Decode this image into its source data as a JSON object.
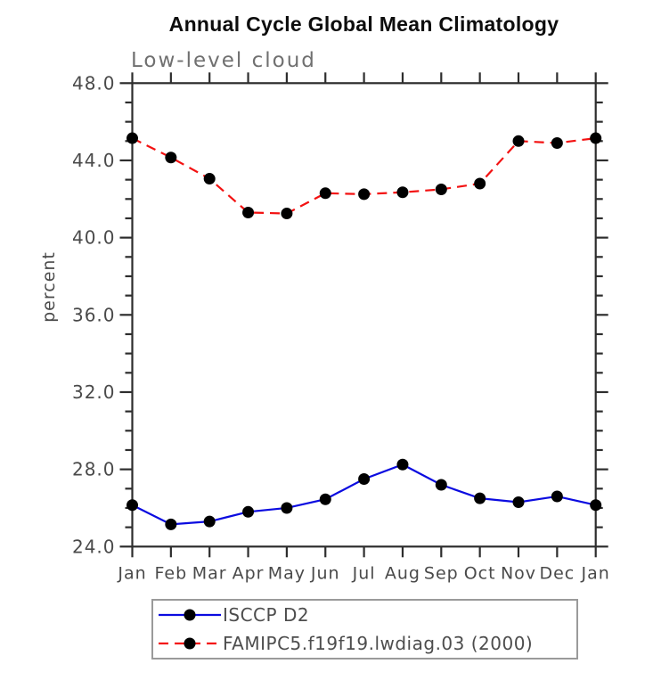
{
  "title": "Annual Cycle Global Mean Climatology",
  "subtitle": "Low-level cloud",
  "ylabel": "percent",
  "colors": {
    "axis": "#2d2d2d",
    "tick_text": "#4a4a4a",
    "subtitle_text": "#707070",
    "legend_border": "#9a9a9a",
    "marker": "#000000",
    "background": "#ffffff"
  },
  "chart_data": {
    "type": "line",
    "title": "Annual Cycle Global Mean Climatology",
    "subtitle": "Low-level cloud",
    "xlabel": "",
    "ylabel": "percent",
    "categories": [
      "Jan",
      "Feb",
      "Mar",
      "Apr",
      "May",
      "Jun",
      "Jul",
      "Aug",
      "Sep",
      "Oct",
      "Nov",
      "Dec",
      "Jan"
    ],
    "ylim": [
      24.0,
      48.0
    ],
    "ymajor_step": 4,
    "yminor_step": 1,
    "ytick_labels": [
      "24.0",
      "28.0",
      "32.0",
      "36.0",
      "40.0",
      "44.0",
      "48.0"
    ],
    "grid": false,
    "legend_position": "bottom",
    "series": [
      {
        "name": "ISCCP D2",
        "color": "#0b0be0",
        "line": "solid",
        "marker": "circle",
        "marker_color": "#000000",
        "values": [
          26.15,
          25.15,
          25.3,
          25.8,
          26.0,
          26.45,
          27.5,
          28.25,
          27.2,
          26.5,
          26.3,
          26.6,
          26.15
        ]
      },
      {
        "name": "FAMIPC5.f19f19.lwdiag.03 (2000)",
        "color": "#f31111",
        "line": "dashed",
        "marker": "circle",
        "marker_color": "#000000",
        "values": [
          45.15,
          44.15,
          43.05,
          41.3,
          41.25,
          42.3,
          42.25,
          42.35,
          42.5,
          42.8,
          45.0,
          44.9,
          45.15
        ]
      }
    ]
  }
}
